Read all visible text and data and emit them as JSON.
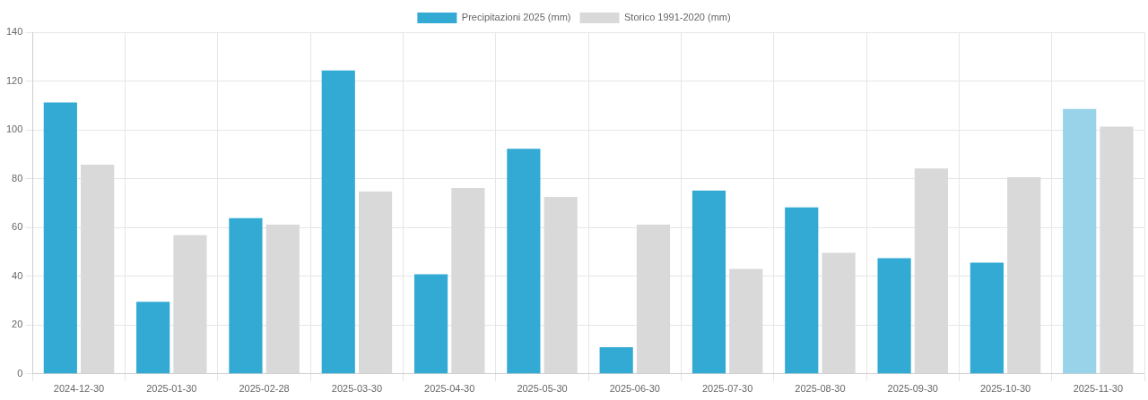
{
  "chart_data": {
    "type": "bar",
    "categories": [
      "2024-12-30",
      "2025-01-30",
      "2025-02-28",
      "2025-03-30",
      "2025-04-30",
      "2025-05-30",
      "2025-06-30",
      "2025-07-30",
      "2025-08-30",
      "2025-09-30",
      "2025-10-30",
      "2025-11-30"
    ],
    "series": [
      {
        "name": "Precipitazioni 2025 (mm)",
        "color": "#33aad4",
        "colors": [
          "#33aad4",
          "#33aad4",
          "#33aad4",
          "#33aad4",
          "#33aad4",
          "#33aad4",
          "#33aad4",
          "#33aad4",
          "#33aad4",
          "#33aad4",
          "#33aad4",
          "#98d3e9"
        ],
        "values": [
          111.2,
          29.5,
          63.8,
          124.3,
          40.8,
          92.2,
          10.9,
          75.1,
          68.2,
          47.4,
          45.6,
          108.6
        ]
      },
      {
        "name": "Storico 1991-2020 (mm)",
        "color": "#d9d9d9",
        "values": [
          85.7,
          56.9,
          61.2,
          74.7,
          76.2,
          72.5,
          61.2,
          43,
          49.6,
          84.2,
          80.6,
          101.3
        ]
      }
    ],
    "ylim": [
      0,
      140
    ],
    "yticks": [
      0,
      20,
      40,
      60,
      80,
      100,
      120,
      140
    ],
    "grid": true,
    "legend": "top"
  }
}
